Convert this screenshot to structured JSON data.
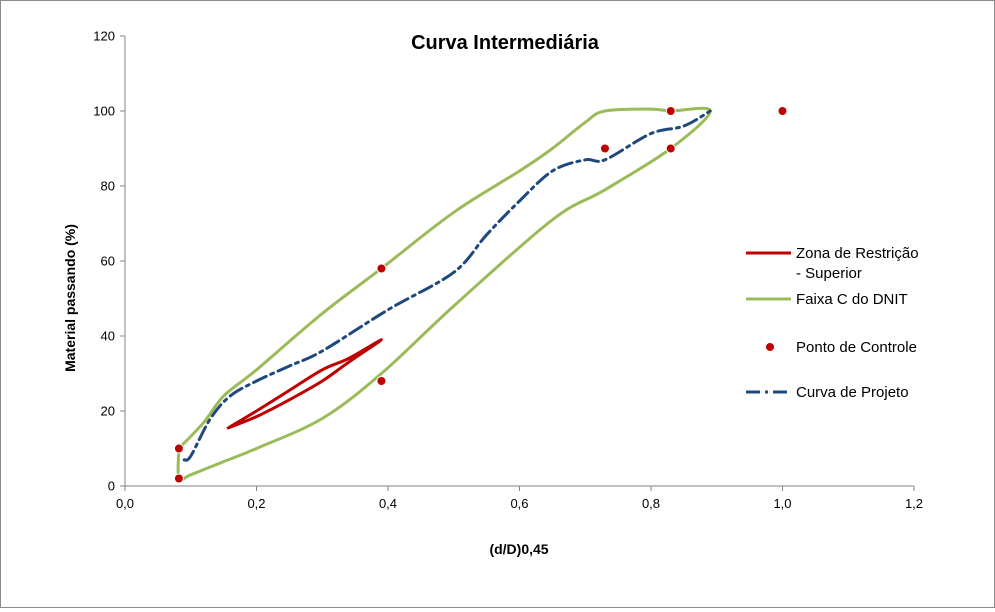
{
  "chart_data": {
    "type": "scatter",
    "title": "Curva Intermediária",
    "xlabel": "(d/D)0,45",
    "ylabel": "Material passando (%)",
    "xlim": [
      0,
      1.2
    ],
    "ylim": [
      0,
      120
    ],
    "x_ticks": [
      "0,0",
      "0,2",
      "0,4",
      "0,6",
      "0,8",
      "1,0",
      "1,2"
    ],
    "y_ticks": [
      "0",
      "20",
      "40",
      "60",
      "80",
      "100",
      "120"
    ],
    "grid": false,
    "legend_position": "right",
    "series": [
      {
        "name": "Zona de Restrição - Superior",
        "legend_lines": [
          "Zona de Restrição",
          "- Superior"
        ],
        "kind": "line",
        "color": "#c00000",
        "points": [
          [
            0.157,
            15.5
          ],
          [
            0.2,
            20
          ],
          [
            0.25,
            25.5
          ],
          [
            0.3,
            31
          ],
          [
            0.34,
            34
          ],
          [
            0.39,
            39
          ],
          [
            0.34,
            33
          ],
          [
            0.3,
            28
          ],
          [
            0.25,
            23
          ],
          [
            0.2,
            18.5
          ],
          [
            0.157,
            15.5
          ]
        ]
      },
      {
        "name": "Faixa C do DNIT",
        "kind": "line",
        "color": "#9bbb59",
        "points": [
          [
            0.082,
            10
          ],
          [
            0.12,
            17
          ],
          [
            0.15,
            24
          ],
          [
            0.2,
            31
          ],
          [
            0.3,
            46
          ],
          [
            0.39,
            58
          ],
          [
            0.5,
            73
          ],
          [
            0.6,
            84
          ],
          [
            0.65,
            90
          ],
          [
            0.7,
            97
          ],
          [
            0.73,
            100
          ],
          [
            0.8,
            100.5
          ],
          [
            0.83,
            100
          ],
          [
            0.89,
            100
          ],
          [
            0.83,
            90
          ],
          [
            0.73,
            79
          ],
          [
            0.65,
            71
          ],
          [
            0.5,
            48
          ],
          [
            0.39,
            30
          ],
          [
            0.3,
            18
          ],
          [
            0.2,
            10
          ],
          [
            0.15,
            6.5
          ],
          [
            0.1,
            3
          ],
          [
            0.082,
            2
          ],
          [
            0.082,
            10
          ]
        ]
      },
      {
        "name": "Ponto de Controle",
        "kind": "scatter",
        "color": "#c00000",
        "points": [
          [
            0.082,
            10
          ],
          [
            0.082,
            2
          ],
          [
            0.39,
            58
          ],
          [
            0.39,
            28
          ],
          [
            0.73,
            90
          ],
          [
            0.83,
            100
          ],
          [
            0.83,
            90
          ],
          [
            1.0,
            100
          ]
        ]
      },
      {
        "name": "Curva de Projeto",
        "kind": "line",
        "color": "#1f497d",
        "points": [
          [
            0.09,
            7
          ],
          [
            0.1,
            8
          ],
          [
            0.13,
            18
          ],
          [
            0.16,
            24
          ],
          [
            0.2,
            28
          ],
          [
            0.25,
            32
          ],
          [
            0.3,
            36
          ],
          [
            0.4,
            47
          ],
          [
            0.5,
            57
          ],
          [
            0.55,
            67
          ],
          [
            0.6,
            76
          ],
          [
            0.65,
            84
          ],
          [
            0.7,
            87
          ],
          [
            0.73,
            87
          ],
          [
            0.8,
            94
          ],
          [
            0.85,
            96
          ],
          [
            0.89,
            100
          ]
        ]
      }
    ]
  }
}
